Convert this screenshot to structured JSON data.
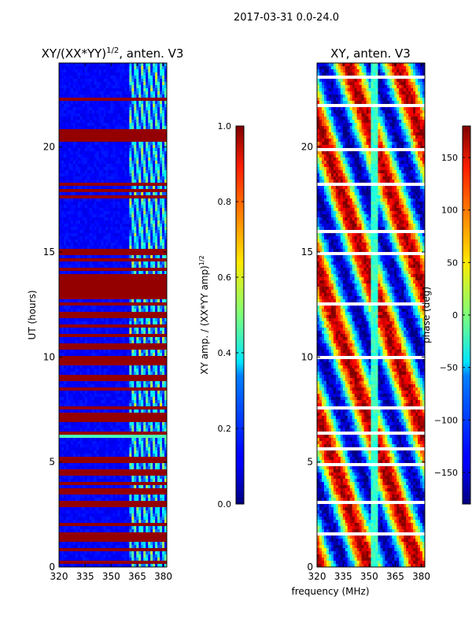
{
  "figure": {
    "suptitle": "2017-03-31 0.0-24.0",
    "xlabel": "frequency (MHz)"
  },
  "chart_data": [
    {
      "type": "heatmap",
      "title_base": "XY/(XX*YY)",
      "title_exp": "1/2",
      "title_suffix": ", anten. V3",
      "xlabel": "",
      "ylabel": "UT (hours)",
      "xlim": [
        320,
        382
      ],
      "ylim": [
        0,
        24
      ],
      "xticks": [
        320,
        335,
        350,
        365,
        380
      ],
      "yticks": [
        0,
        5,
        10,
        15,
        20
      ],
      "colormap": "jet",
      "colorbar": {
        "label_base": "XY amp. / (XX*YY amp)",
        "label_exp": "1/2",
        "vmin": 0.0,
        "vmax": 1.0,
        "ticks": [
          "0.0",
          "0.2",
          "0.4",
          "0.6",
          "0.8",
          "1.0"
        ],
        "tick_values": [
          0.0,
          0.2,
          0.4,
          0.6,
          0.8,
          1.0
        ]
      },
      "features": {
        "low_band_value": 0.1,
        "high_band_start_mhz": 361,
        "high_band_value_range": [
          0.1,
          0.6
        ],
        "saturated_ut_hours": [
          0.2,
          0.8,
          1.3,
          1.45,
          1.6,
          2.0,
          3.0,
          3.6,
          4.0,
          4.5,
          5.0,
          5.15,
          6.4,
          7.0,
          7.2,
          7.6,
          8.5,
          9.0,
          9.7,
          9.9,
          10.5,
          11.0,
          11.5,
          12.0,
          12.5,
          12.9,
          13.2,
          13.5,
          13.8,
          14.2,
          14.6,
          15.0,
          17.6,
          17.9,
          18.2,
          20.4,
          20.6,
          20.8,
          22.3
        ],
        "bright_ut_hours": [
          6.3
        ]
      }
    },
    {
      "type": "heatmap",
      "title": "XY, anten. V3",
      "xlabel": "",
      "ylabel": "",
      "xlim": [
        320,
        382
      ],
      "ylim": [
        0,
        24
      ],
      "xticks": [
        320,
        335,
        350,
        365,
        380
      ],
      "yticks": [
        0,
        5,
        10,
        15,
        20
      ],
      "colormap": "jet",
      "colorbar": {
        "label": "phase (deg)",
        "vmin": -180,
        "vmax": 180,
        "ticks": [
          "−150",
          "−100",
          "−50",
          "0",
          "50",
          "100",
          "150"
        ],
        "tick_values": [
          -150,
          -100,
          -50,
          0,
          50,
          100,
          150
        ]
      },
      "features": {
        "phase_band_center_mhz": 353,
        "white_gap_ut_hours": [
          1.6,
          3.1,
          4.9,
          5.6,
          6.4,
          7.6,
          10.0,
          12.5,
          14.9,
          16.0,
          18.2,
          19.9,
          21.0,
          22.0,
          23.3
        ]
      }
    }
  ]
}
